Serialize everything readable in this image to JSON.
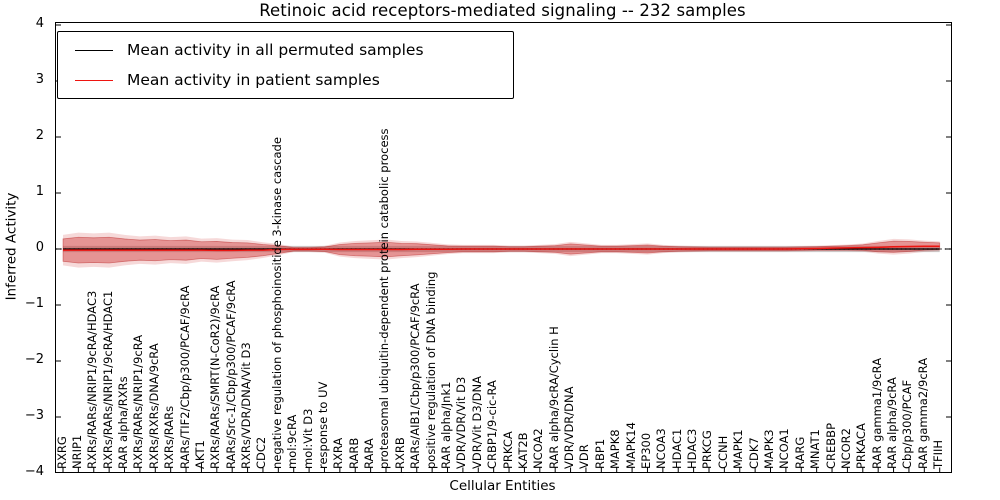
{
  "title": "Retinoic acid receptors-mediated signaling -- 232 samples",
  "axes": {
    "xlabel": "Cellular Entities",
    "ylabel": "Inferred Activity",
    "y_ticks": [
      "4",
      "3",
      "2",
      "1",
      "0",
      "−1",
      "−2",
      "−3",
      "−4"
    ],
    "ylim": [
      -4,
      4
    ]
  },
  "legend": {
    "entries": [
      {
        "label": "Mean activity in all permuted samples",
        "color": "#000000"
      },
      {
        "label": "Mean activity in patient samples",
        "color": "#ee1410"
      }
    ]
  },
  "colors": {
    "patient_line": "#ee1410",
    "permuted_line": "#000000",
    "patient_band_inner": "rgba(205,45,45,0.40)",
    "patient_band_outer": "rgba(205,45,45,0.18)",
    "patient_band_edge": "rgba(180,25,25,0.45)",
    "permuted_band": "rgba(130,130,130,0.40)",
    "zero_line": "#000000"
  },
  "chart_data": {
    "type": "line",
    "title": "Retinoic acid receptors-mediated signaling -- 232 samples",
    "xlabel": "Cellular Entities",
    "ylabel": "Inferred Activity",
    "ylim": [
      -4,
      4
    ],
    "grid": false,
    "legend_position": "upper left",
    "zero_line_style": "dotted",
    "categories": [
      "RXRG",
      "NRIP1",
      "RXRs/RARs/NRIP1/9cRA/HDAC3",
      "RXRs/RARs/NRIP1/9cRA/HDAC1",
      "RAR alpha/RXRs",
      "RXRs/RARs/NRIP1/9cRA",
      "RXRs/RXRs/DNA/9cRA",
      "RXRs/RARs",
      "RARs/TIF2/Cbp/p300/PCAF/9cRA",
      "AKT1",
      "RXRs/RARs/SMRT(N-CoR2)/9cRA",
      "RARs/Src-1/Cbp/p300/PCAF/9cRA",
      "RXRs/VDR/DNA/Vit D3",
      "CDC2",
      "negative regulation of phosphoinositide 3-kinase cascade",
      "mol:9cRA",
      "mol:Vit D3",
      "response to UV",
      "RXRA",
      "RARB",
      "RARA",
      "proteasomal ubiquitin-dependent protein catabolic process",
      "RXRB",
      "RARs/AIB1/Cbp/p300/PCAF/9cRA",
      "positive regulation of DNA binding",
      "RAR alpha/Jnk1",
      "VDR/VDR/Vit D3",
      "VDR/Vit D3/DNA",
      "CRBP1/9-cic-RA",
      "PRKCA",
      "KAT2B",
      "NCOA2",
      "RAR alpha/9cRA/Cyclin H",
      "VDR/VDR/DNA",
      "VDR",
      "RBP1",
      "MAPK8",
      "MAPK14",
      "EP300",
      "NCOA3",
      "HDAC1",
      "HDAC3",
      "PRKCG",
      "CCNH",
      "MAPK1",
      "CDK7",
      "MAPK3",
      "NCOA1",
      "RARG",
      "MNAT1",
      "CREBBP",
      "NCOR2",
      "PRKACA",
      "RAR gamma1/9cRA",
      "RAR alpha/9cRA",
      "Cbp/p300/PCAF",
      "RAR gamma2/9cRA",
      "TFIIH"
    ],
    "series": [
      {
        "name": "Mean activity in all permuted samples",
        "color": "#000000",
        "mean": 0,
        "std": 0.055
      },
      {
        "name": "Mean activity in patient samples",
        "color": "#ee1410",
        "values": [
          -0.02,
          -0.02,
          -0.02,
          -0.02,
          -0.02,
          -0.02,
          -0.02,
          -0.02,
          -0.02,
          -0.02,
          -0.025,
          -0.025,
          -0.02,
          -0.02,
          -0.01,
          -0.005,
          -0.005,
          -0.005,
          -0.01,
          -0.01,
          -0.01,
          -0.01,
          -0.01,
          -0.005,
          -0.005,
          -0.005,
          0,
          0,
          0,
          0,
          0,
          0,
          0,
          0,
          0,
          0,
          0,
          0,
          0,
          0,
          0,
          0,
          0,
          0,
          0,
          0,
          0,
          0,
          0.005,
          0.01,
          0.015,
          0.02,
          0.025,
          0.03,
          0.04,
          0.045,
          0.05,
          0.05
        ],
        "std": [
          0.2,
          0.23,
          0.22,
          0.23,
          0.2,
          0.18,
          0.19,
          0.17,
          0.18,
          0.15,
          0.16,
          0.14,
          0.13,
          0.1,
          0.07,
          0.03,
          0.03,
          0.04,
          0.09,
          0.11,
          0.12,
          0.13,
          0.11,
          0.1,
          0.08,
          0.06,
          0.05,
          0.05,
          0.05,
          0.04,
          0.04,
          0.05,
          0.06,
          0.09,
          0.07,
          0.05,
          0.05,
          0.06,
          0.07,
          0.05,
          0.04,
          0.035,
          0.03,
          0.03,
          0.03,
          0.03,
          0.03,
          0.03,
          0.03,
          0.03,
          0.035,
          0.04,
          0.05,
          0.08,
          0.1,
          0.09,
          0.07,
          0.06
        ]
      }
    ]
  }
}
